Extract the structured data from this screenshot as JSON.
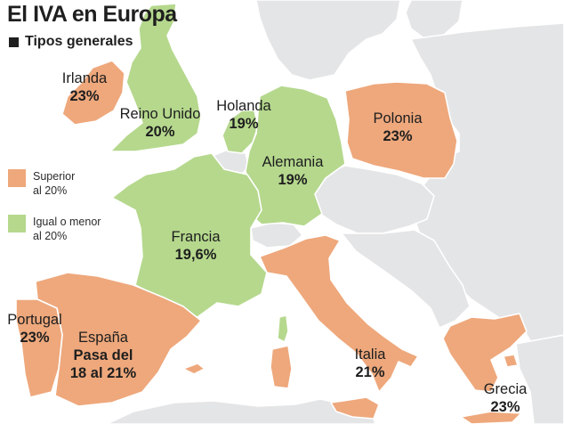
{
  "title": "El IVA en Europa",
  "subtitle": "Tipos generales",
  "colors": {
    "superior": "#eea87c",
    "igual_menor": "#b5d88d",
    "other_land": "#e4e5e6",
    "text": "#1f1f1f"
  },
  "legend": {
    "superior": {
      "line1": "Superior",
      "line2": "al 20%"
    },
    "igual_menor": {
      "line1": "Igual o menor",
      "line2": "al 20%"
    }
  },
  "countries": {
    "irlanda": {
      "name": "Irlanda",
      "rate": "23%",
      "category": "superior"
    },
    "reino_unido": {
      "name": "Reino Unido",
      "rate": "20%",
      "category": "igual_menor"
    },
    "holanda": {
      "name": "Holanda",
      "rate": "19%",
      "category": "igual_menor"
    },
    "polonia": {
      "name": "Polonia",
      "rate": "23%",
      "category": "superior"
    },
    "alemania": {
      "name": "Alemania",
      "rate": "19%",
      "category": "igual_menor"
    },
    "francia": {
      "name": "Francia",
      "rate": "19,6%",
      "category": "igual_menor"
    },
    "portugal": {
      "name": "Portugal",
      "rate": "23%",
      "category": "superior"
    },
    "espana": {
      "name": "España",
      "rate_line1": "Pasa del",
      "rate_line2": "18 al 21%",
      "category": "superior"
    },
    "italia": {
      "name": "Italia",
      "rate": "21%",
      "category": "superior"
    },
    "grecia": {
      "name": "Grecia",
      "rate": "23%",
      "category": "superior"
    }
  }
}
